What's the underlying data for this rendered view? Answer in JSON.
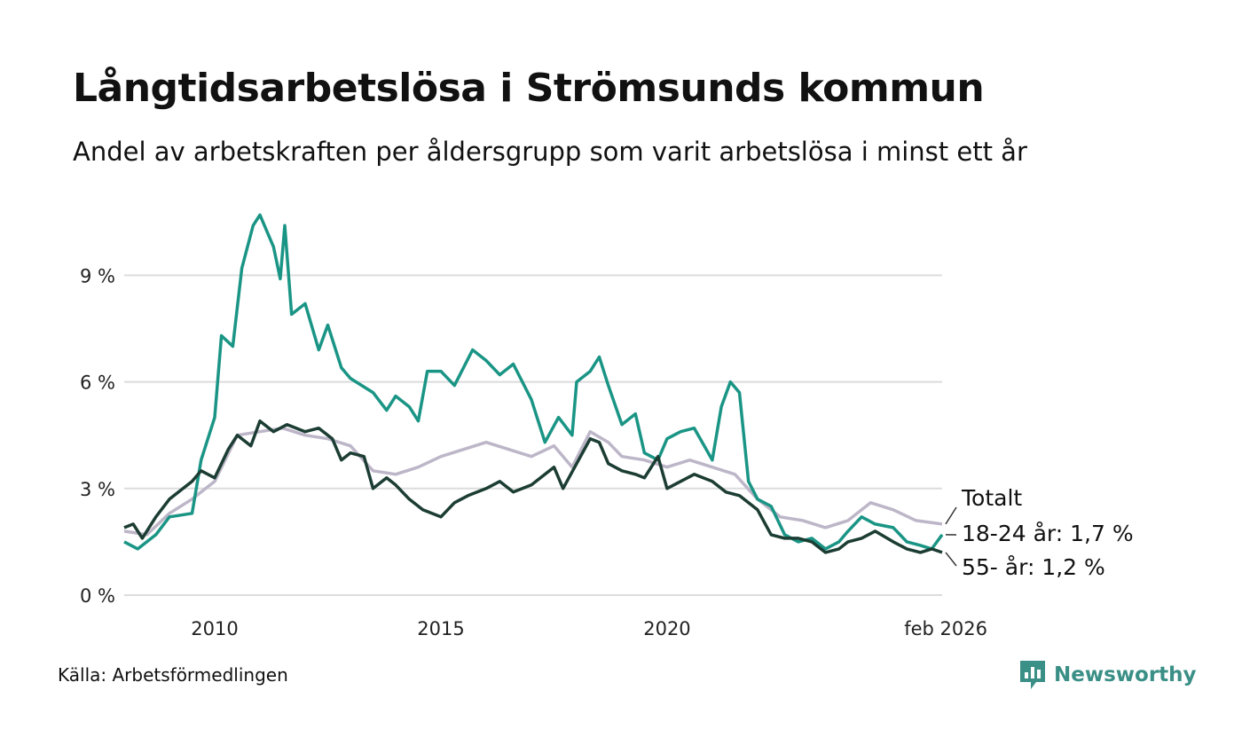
{
  "title": "Långtidsarbetslösa i Strömsunds kommun",
  "subtitle": "Andel av arbetskraften per åldersgrupp som varit arbetslösa i minst ett år",
  "source": "Källa: Arbetsförmedlingen",
  "brand": {
    "name": "Newsworthy",
    "icon": "newsworthy-logo-icon",
    "color": "#3a8f86"
  },
  "chart_data": {
    "type": "line",
    "y_ticks": [
      {
        "value": 0,
        "label": "0 %"
      },
      {
        "value": 3,
        "label": "3 %"
      },
      {
        "value": 6,
        "label": "6 %"
      },
      {
        "value": 9,
        "label": "9 %"
      }
    ],
    "x_ticks": [
      {
        "value": 2010.0,
        "label": "2010"
      },
      {
        "value": 2015.0,
        "label": "2015"
      },
      {
        "value": 2020.0,
        "label": "2020"
      },
      {
        "value": 2026.08,
        "label": "feb 2026"
      }
    ],
    "xlim": [
      2008.0,
      2026.08
    ],
    "ylim": [
      0,
      11
    ],
    "grid": true,
    "series": [
      {
        "name": "Totalt",
        "label": "Totalt",
        "color": "#bdb6c8",
        "points": [
          [
            2008.0,
            1.8
          ],
          [
            2008.5,
            1.7
          ],
          [
            2009.0,
            2.3
          ],
          [
            2009.5,
            2.7
          ],
          [
            2010.0,
            3.2
          ],
          [
            2010.5,
            4.5
          ],
          [
            2011.0,
            4.6
          ],
          [
            2011.5,
            4.7
          ],
          [
            2012.0,
            4.5
          ],
          [
            2012.5,
            4.4
          ],
          [
            2013.0,
            4.2
          ],
          [
            2013.5,
            3.5
          ],
          [
            2014.0,
            3.4
          ],
          [
            2014.5,
            3.6
          ],
          [
            2015.0,
            3.9
          ],
          [
            2015.5,
            4.1
          ],
          [
            2016.0,
            4.3
          ],
          [
            2016.5,
            4.1
          ],
          [
            2017.0,
            3.9
          ],
          [
            2017.5,
            4.2
          ],
          [
            2017.9,
            3.6
          ],
          [
            2018.3,
            4.6
          ],
          [
            2018.7,
            4.3
          ],
          [
            2019.0,
            3.9
          ],
          [
            2019.5,
            3.8
          ],
          [
            2020.0,
            3.6
          ],
          [
            2020.5,
            3.8
          ],
          [
            2021.0,
            3.6
          ],
          [
            2021.5,
            3.4
          ],
          [
            2022.0,
            2.7
          ],
          [
            2022.5,
            2.2
          ],
          [
            2023.0,
            2.1
          ],
          [
            2023.5,
            1.9
          ],
          [
            2024.0,
            2.1
          ],
          [
            2024.5,
            2.6
          ],
          [
            2025.0,
            2.4
          ],
          [
            2025.5,
            2.1
          ],
          [
            2026.08,
            2.0
          ]
        ]
      },
      {
        "name": "18-24 år",
        "label": "18-24 år: 1,7 %",
        "color": "#1a9585",
        "points": [
          [
            2008.0,
            1.5
          ],
          [
            2008.3,
            1.3
          ],
          [
            2008.7,
            1.7
          ],
          [
            2009.0,
            2.2
          ],
          [
            2009.5,
            2.3
          ],
          [
            2009.7,
            3.8
          ],
          [
            2010.0,
            5.0
          ],
          [
            2010.15,
            7.3
          ],
          [
            2010.4,
            7.0
          ],
          [
            2010.6,
            9.2
          ],
          [
            2010.85,
            10.4
          ],
          [
            2011.0,
            10.7
          ],
          [
            2011.3,
            9.8
          ],
          [
            2011.45,
            8.9
          ],
          [
            2011.55,
            10.4
          ],
          [
            2011.7,
            7.9
          ],
          [
            2012.0,
            8.2
          ],
          [
            2012.3,
            6.9
          ],
          [
            2012.5,
            7.6
          ],
          [
            2012.8,
            6.4
          ],
          [
            2013.0,
            6.1
          ],
          [
            2013.5,
            5.7
          ],
          [
            2013.8,
            5.2
          ],
          [
            2014.0,
            5.6
          ],
          [
            2014.3,
            5.3
          ],
          [
            2014.5,
            4.9
          ],
          [
            2014.7,
            6.3
          ],
          [
            2015.0,
            6.3
          ],
          [
            2015.3,
            5.9
          ],
          [
            2015.7,
            6.9
          ],
          [
            2016.0,
            6.6
          ],
          [
            2016.3,
            6.2
          ],
          [
            2016.6,
            6.5
          ],
          [
            2017.0,
            5.5
          ],
          [
            2017.3,
            4.3
          ],
          [
            2017.6,
            5.0
          ],
          [
            2017.9,
            4.5
          ],
          [
            2018.0,
            6.0
          ],
          [
            2018.3,
            6.3
          ],
          [
            2018.5,
            6.7
          ],
          [
            2018.7,
            5.9
          ],
          [
            2019.0,
            4.8
          ],
          [
            2019.3,
            5.1
          ],
          [
            2019.5,
            4.0
          ],
          [
            2019.8,
            3.8
          ],
          [
            2020.0,
            4.4
          ],
          [
            2020.3,
            4.6
          ],
          [
            2020.6,
            4.7
          ],
          [
            2021.0,
            3.8
          ],
          [
            2021.2,
            5.3
          ],
          [
            2021.4,
            6.0
          ],
          [
            2021.6,
            5.7
          ],
          [
            2021.8,
            3.2
          ],
          [
            2022.0,
            2.7
          ],
          [
            2022.3,
            2.5
          ],
          [
            2022.6,
            1.7
          ],
          [
            2022.9,
            1.5
          ],
          [
            2023.2,
            1.6
          ],
          [
            2023.5,
            1.3
          ],
          [
            2023.8,
            1.5
          ],
          [
            2024.0,
            1.8
          ],
          [
            2024.3,
            2.2
          ],
          [
            2024.6,
            2.0
          ],
          [
            2025.0,
            1.9
          ],
          [
            2025.3,
            1.5
          ],
          [
            2025.6,
            1.4
          ],
          [
            2025.85,
            1.3
          ],
          [
            2026.08,
            1.7
          ]
        ]
      },
      {
        "name": "55- år",
        "label": "55- år: 1,2 %",
        "color": "#1c3d33",
        "points": [
          [
            2008.0,
            1.9
          ],
          [
            2008.2,
            2.0
          ],
          [
            2008.4,
            1.6
          ],
          [
            2008.7,
            2.2
          ],
          [
            2009.0,
            2.7
          ],
          [
            2009.5,
            3.2
          ],
          [
            2009.7,
            3.5
          ],
          [
            2010.0,
            3.3
          ],
          [
            2010.3,
            4.1
          ],
          [
            2010.5,
            4.5
          ],
          [
            2010.8,
            4.2
          ],
          [
            2011.0,
            4.9
          ],
          [
            2011.3,
            4.6
          ],
          [
            2011.6,
            4.8
          ],
          [
            2012.0,
            4.6
          ],
          [
            2012.3,
            4.7
          ],
          [
            2012.6,
            4.4
          ],
          [
            2012.8,
            3.8
          ],
          [
            2013.0,
            4.0
          ],
          [
            2013.3,
            3.9
          ],
          [
            2013.5,
            3.0
          ],
          [
            2013.8,
            3.3
          ],
          [
            2014.0,
            3.1
          ],
          [
            2014.3,
            2.7
          ],
          [
            2014.6,
            2.4
          ],
          [
            2015.0,
            2.2
          ],
          [
            2015.3,
            2.6
          ],
          [
            2015.6,
            2.8
          ],
          [
            2016.0,
            3.0
          ],
          [
            2016.3,
            3.2
          ],
          [
            2016.6,
            2.9
          ],
          [
            2017.0,
            3.1
          ],
          [
            2017.3,
            3.4
          ],
          [
            2017.5,
            3.6
          ],
          [
            2017.7,
            3.0
          ],
          [
            2018.0,
            3.7
          ],
          [
            2018.3,
            4.4
          ],
          [
            2018.5,
            4.3
          ],
          [
            2018.7,
            3.7
          ],
          [
            2019.0,
            3.5
          ],
          [
            2019.3,
            3.4
          ],
          [
            2019.5,
            3.3
          ],
          [
            2019.8,
            3.9
          ],
          [
            2020.0,
            3.0
          ],
          [
            2020.3,
            3.2
          ],
          [
            2020.6,
            3.4
          ],
          [
            2021.0,
            3.2
          ],
          [
            2021.3,
            2.9
          ],
          [
            2021.6,
            2.8
          ],
          [
            2022.0,
            2.4
          ],
          [
            2022.3,
            1.7
          ],
          [
            2022.6,
            1.6
          ],
          [
            2022.9,
            1.6
          ],
          [
            2023.2,
            1.5
          ],
          [
            2023.5,
            1.2
          ],
          [
            2023.8,
            1.3
          ],
          [
            2024.0,
            1.5
          ],
          [
            2024.3,
            1.6
          ],
          [
            2024.6,
            1.8
          ],
          [
            2025.0,
            1.5
          ],
          [
            2025.3,
            1.3
          ],
          [
            2025.6,
            1.2
          ],
          [
            2025.85,
            1.3
          ],
          [
            2026.08,
            1.2
          ]
        ]
      }
    ]
  }
}
